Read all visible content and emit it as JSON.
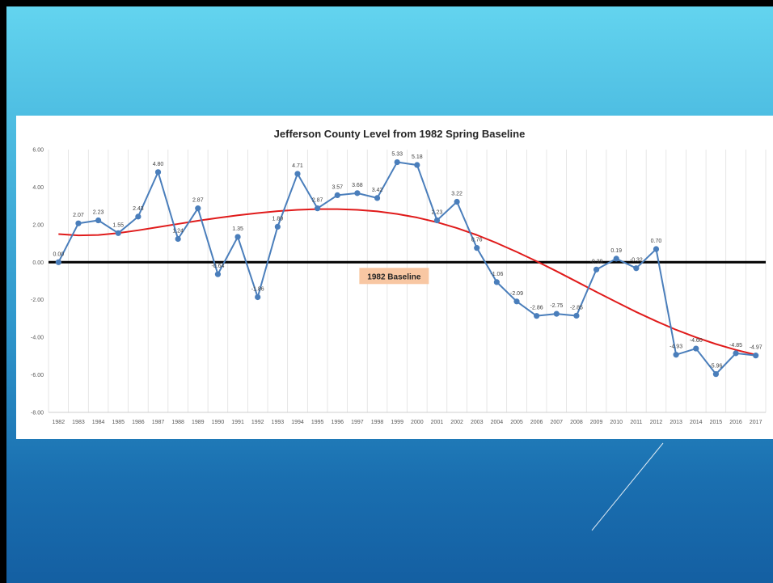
{
  "chart_data": {
    "type": "line",
    "title": "Jefferson County Level from 1982 Spring Baseline",
    "xlabel": "",
    "ylabel": "",
    "ylim": [
      -8,
      6
    ],
    "yticks": [
      "6.00",
      "4.00",
      "2.00",
      "0.00",
      "-2.00",
      "-4.00",
      "-6.00",
      "-8.00"
    ],
    "ytick_values": [
      6,
      4,
      2,
      0,
      -2,
      -4,
      -6,
      -8
    ],
    "grid": "vertical",
    "categories": [
      "1982",
      "1983",
      "1984",
      "1985",
      "1986",
      "1987",
      "1988",
      "1989",
      "1990",
      "1991",
      "1992",
      "1993",
      "1994",
      "1995",
      "1996",
      "1997",
      "1998",
      "1999",
      "2000",
      "2001",
      "2002",
      "2003",
      "2004",
      "2005",
      "2006",
      "2007",
      "2008",
      "2009",
      "2010",
      "2011",
      "2012",
      "2013",
      "2014",
      "2015",
      "2016",
      "2017"
    ],
    "series": [
      {
        "values": [
          0.0,
          2.07,
          2.23,
          1.55,
          2.43,
          4.8,
          1.24,
          2.87,
          -0.64,
          1.35,
          -1.86,
          1.89,
          4.71,
          2.87,
          3.57,
          3.68,
          3.42,
          5.33,
          5.18,
          2.23,
          3.22,
          0.76,
          -1.06,
          -2.09,
          -2.86,
          -2.75,
          -2.85,
          -0.39,
          0.19,
          -0.32,
          0.7,
          -4.93,
          -4.6,
          -5.96,
          -4.85,
          -4.97
        ],
        "labels": [
          "0.00",
          "2.07",
          "2.23",
          "1.55",
          "2.43",
          "4.80",
          "1.24",
          "2.87",
          "-0.64",
          "1.35",
          "-1.86",
          "1.89",
          "4.71",
          "2.87",
          "3.57",
          "3.68",
          "3.42",
          "5.33",
          "5.18",
          "2.23",
          "3.22",
          "0.76",
          "-1.06",
          "-2.09",
          "-2.86",
          "-2.75",
          "-2.85",
          "-0.39",
          "0.19",
          "-0.32",
          "0.70",
          "-4.93",
          "-4.60",
          "-5.96",
          "-4.85",
          "-4.97"
        ],
        "color": "#4a7ebb"
      }
    ],
    "trendline": {
      "color": "#e01b1b",
      "values": [
        1.5,
        1.43,
        1.45,
        1.55,
        1.7,
        1.87,
        2.04,
        2.21,
        2.36,
        2.5,
        2.62,
        2.72,
        2.79,
        2.83,
        2.83,
        2.79,
        2.71,
        2.57,
        2.38,
        2.13,
        1.82,
        1.45,
        1.02,
        0.55,
        0.05,
        -0.48,
        -1.03,
        -1.58,
        -2.12,
        -2.65,
        -3.14,
        -3.6,
        -4.0,
        -4.36,
        -4.67,
        -4.93
      ]
    },
    "baseline": {
      "value": 0,
      "label": "1982 Baseline",
      "label_color": "#f8c7a3",
      "line_color": "#000000"
    }
  },
  "colors": {
    "bg_top": "#63d4ef",
    "bg_bottom": "#145fa2",
    "panel": "#ffffff",
    "grid": "#dcdcdc"
  }
}
